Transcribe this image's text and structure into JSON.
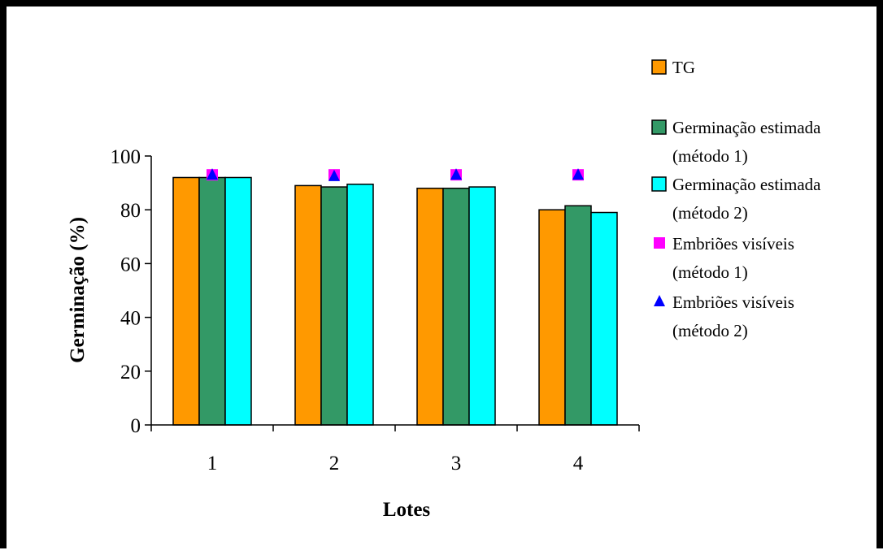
{
  "chart_data": {
    "type": "bar",
    "categories": [
      "1",
      "2",
      "3",
      "4"
    ],
    "series": [
      {
        "name": "TG",
        "kind": "bar",
        "color": "#FF9900",
        "values": [
          92,
          89,
          88,
          80
        ]
      },
      {
        "name": "Germinação estimada (método 1)",
        "kind": "bar",
        "color": "#339966",
        "values": [
          92,
          88.5,
          88,
          81.5
        ]
      },
      {
        "name": "Germinação estimada (método 2)",
        "kind": "bar",
        "color": "#00FFFF",
        "values": [
          92,
          89.5,
          88.5,
          79
        ]
      },
      {
        "name": "Embriões visíveis (método 1)",
        "kind": "marker",
        "marker": "square",
        "color": "#FF00FF",
        "values": [
          93,
          93,
          93,
          93
        ]
      },
      {
        "name": "Embriões visíveis (método 2)",
        "kind": "marker",
        "marker": "triangle",
        "color": "#0000FF",
        "values": [
          93,
          92.5,
          93,
          93
        ]
      }
    ],
    "xlabel": "Lotes",
    "ylabel": "Germinação (%)",
    "ylim": [
      0,
      100
    ],
    "yticks": [
      "0",
      "20",
      "40",
      "60",
      "80",
      "100"
    ],
    "grid": false,
    "legend_position": "right",
    "legend": [
      {
        "lines": [
          "TG"
        ]
      },
      {
        "lines": [
          "Germinação estimada",
          "(método 1)"
        ]
      },
      {
        "lines": [
          "Germinação estimada",
          "(método 2)"
        ]
      },
      {
        "lines": [
          "Embriões visíveis",
          "(método 1)"
        ]
      },
      {
        "lines": [
          "Embriões visíveis",
          "(método 2)"
        ]
      }
    ]
  }
}
